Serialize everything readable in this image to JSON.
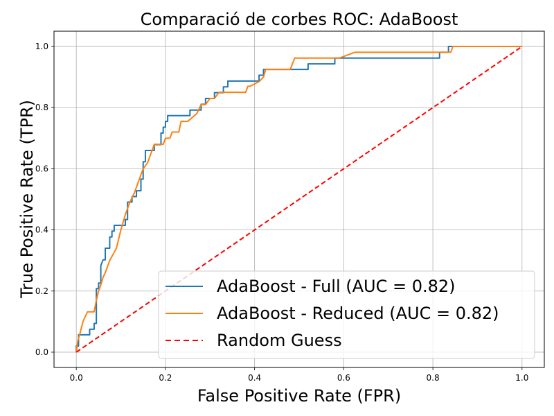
{
  "chart_data": {
    "type": "line",
    "title": "Comparació de corbes ROC: AdaBoost",
    "xlabel": "False Positive Rate (FPR)",
    "ylabel": "True Positive Rate (TPR)",
    "xlim": [
      -0.05,
      1.05
    ],
    "ylim": [
      -0.05,
      1.05
    ],
    "xticks": [
      0.0,
      0.2,
      0.4,
      0.6,
      0.8,
      1.0
    ],
    "yticks": [
      0.0,
      0.2,
      0.4,
      0.6,
      0.8,
      1.0
    ],
    "xtick_labels": [
      "0.0",
      "0.2",
      "0.4",
      "0.6",
      "0.8",
      "1.0"
    ],
    "ytick_labels": [
      "0.0",
      "0.2",
      "0.4",
      "0.6",
      "0.8",
      "1.0"
    ],
    "grid": true,
    "legend_position": "lower-right",
    "series": [
      {
        "name": "AdaBoost - Full (AUC = 0.82)",
        "color": "#1f77b4",
        "dash": "solid",
        "x": [
          0.0,
          0.0,
          0.005,
          0.005,
          0.015,
          0.015,
          0.03,
          0.03,
          0.04,
          0.04,
          0.045,
          0.045,
          0.05,
          0.05,
          0.055,
          0.055,
          0.06,
          0.065,
          0.065,
          0.075,
          0.075,
          0.08,
          0.08,
          0.085,
          0.085,
          0.11,
          0.11,
          0.115,
          0.115,
          0.125,
          0.125,
          0.135,
          0.135,
          0.145,
          0.145,
          0.15,
          0.15,
          0.155,
          0.155,
          0.16,
          0.16,
          0.175,
          0.175,
          0.19,
          0.19,
          0.195,
          0.195,
          0.2,
          0.2,
          0.205,
          0.205,
          0.21,
          0.21,
          0.255,
          0.255,
          0.28,
          0.28,
          0.29,
          0.29,
          0.31,
          0.31,
          0.33,
          0.33,
          0.34,
          0.34,
          0.35,
          0.35,
          0.41,
          0.41,
          0.42,
          0.42,
          0.43,
          0.43,
          0.52,
          0.52,
          0.58,
          0.58,
          0.815,
          0.815,
          0.835,
          0.835,
          1.0
        ],
        "y": [
          0.0,
          0.02,
          0.02,
          0.057,
          0.057,
          0.057,
          0.057,
          0.075,
          0.075,
          0.094,
          0.094,
          0.208,
          0.208,
          0.226,
          0.226,
          0.283,
          0.302,
          0.302,
          0.34,
          0.34,
          0.377,
          0.377,
          0.396,
          0.396,
          0.415,
          0.415,
          0.434,
          0.434,
          0.491,
          0.491,
          0.509,
          0.509,
          0.528,
          0.528,
          0.566,
          0.566,
          0.623,
          0.623,
          0.66,
          0.66,
          0.66,
          0.66,
          0.679,
          0.679,
          0.717,
          0.717,
          0.736,
          0.736,
          0.755,
          0.755,
          0.774,
          0.774,
          0.774,
          0.774,
          0.792,
          0.792,
          0.811,
          0.811,
          0.83,
          0.83,
          0.849,
          0.849,
          0.868,
          0.868,
          0.887,
          0.887,
          0.887,
          0.887,
          0.906,
          0.906,
          0.925,
          0.925,
          0.925,
          0.925,
          0.943,
          0.943,
          0.962,
          0.962,
          0.981,
          0.981,
          1.0,
          1.0
        ]
      },
      {
        "name": "AdaBoost - Reduced (AUC = 0.82)",
        "color": "#ff7f0e",
        "dash": "solid",
        "x": [
          0.0,
          0.003,
          0.008,
          0.015,
          0.025,
          0.04,
          0.045,
          0.05,
          0.055,
          0.06,
          0.065,
          0.07,
          0.075,
          0.09,
          0.1,
          0.11,
          0.12,
          0.13,
          0.14,
          0.15,
          0.16,
          0.17,
          0.175,
          0.18,
          0.195,
          0.2,
          0.21,
          0.215,
          0.23,
          0.235,
          0.25,
          0.27,
          0.28,
          0.29,
          0.3,
          0.31,
          0.32,
          0.34,
          0.35,
          0.38,
          0.385,
          0.39,
          0.41,
          0.42,
          0.425,
          0.48,
          0.49,
          0.51,
          0.59,
          0.625,
          0.78,
          0.815,
          0.825,
          0.84,
          0.845,
          1.0
        ],
        "y": [
          0.0,
          0.035,
          0.06,
          0.1,
          0.132,
          0.132,
          0.17,
          0.2,
          0.22,
          0.245,
          0.26,
          0.28,
          0.3,
          0.34,
          0.4,
          0.45,
          0.49,
          0.52,
          0.56,
          0.6,
          0.62,
          0.66,
          0.68,
          0.68,
          0.68,
          0.7,
          0.7,
          0.72,
          0.72,
          0.755,
          0.755,
          0.78,
          0.81,
          0.81,
          0.83,
          0.83,
          0.85,
          0.85,
          0.85,
          0.85,
          0.87,
          0.87,
          0.885,
          0.9,
          0.925,
          0.925,
          0.962,
          0.962,
          0.962,
          0.981,
          0.981,
          0.981,
          0.981,
          0.981,
          1.0,
          1.0
        ]
      },
      {
        "name": "Random Guess",
        "color": "#ff0000",
        "dash": "dashed",
        "x": [
          0.0,
          1.0
        ],
        "y": [
          0.0,
          1.0
        ]
      }
    ]
  }
}
